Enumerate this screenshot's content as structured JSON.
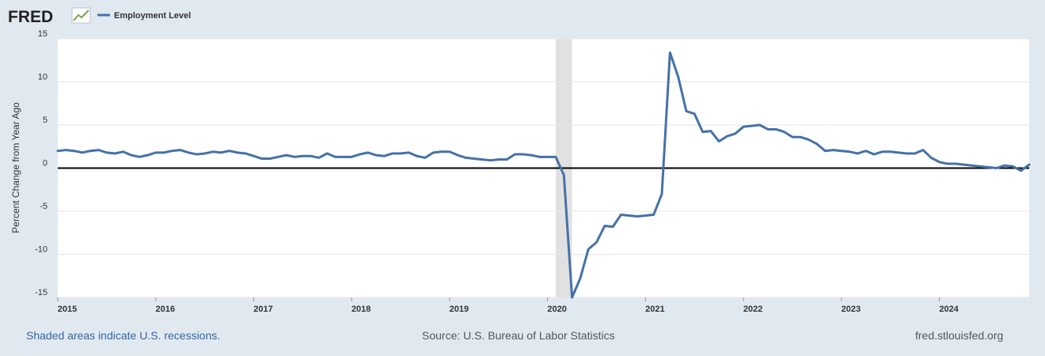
{
  "logo": {
    "text": "FRED"
  },
  "footer": {
    "note": "Shaded areas indicate U.S. recessions.",
    "source": "Source: U.S. Bureau of Labor Statistics",
    "site": "fred.stlouisfed.org"
  },
  "colors": {
    "series": "#4572a7",
    "recession": "#e1e1e1",
    "background": "#e1e9f0",
    "plot": "#ffffff",
    "zero_line": "#000000"
  },
  "chart_data": {
    "type": "line",
    "title": "",
    "xlabel": "",
    "ylabel": "Percent Change from Year Ago",
    "ylim": [
      -15,
      15
    ],
    "xlim": [
      "2015-01",
      "2024-12"
    ],
    "yticks": [
      15,
      10,
      5,
      0,
      -5,
      -10,
      -15
    ],
    "ytick_labels": [
      "15",
      "10",
      "5",
      "0",
      "-5",
      "-10",
      "-15"
    ],
    "xticks": [
      "2015-01",
      "2016-01",
      "2017-01",
      "2018-01",
      "2019-01",
      "2020-01",
      "2021-01",
      "2022-01",
      "2023-01",
      "2024-01"
    ],
    "xtick_labels": [
      "2015",
      "2016",
      "2017",
      "2018",
      "2019",
      "2020",
      "2021",
      "2022",
      "2023",
      "2024"
    ],
    "grid": "horizontal",
    "legend": "top-left",
    "recessions": [
      {
        "start": "2020-02",
        "end": "2020-04"
      }
    ],
    "zero_line": 0,
    "series": [
      {
        "name": "Employment Level",
        "start": "2015-01",
        "frequency": "monthly",
        "values": [
          2.0,
          2.1,
          2.0,
          1.8,
          2.0,
          2.1,
          1.8,
          1.7,
          1.9,
          1.5,
          1.3,
          1.5,
          1.8,
          1.8,
          2.0,
          2.1,
          1.8,
          1.6,
          1.7,
          1.9,
          1.8,
          2.0,
          1.8,
          1.7,
          1.4,
          1.1,
          1.1,
          1.3,
          1.5,
          1.3,
          1.4,
          1.4,
          1.2,
          1.7,
          1.3,
          1.3,
          1.3,
          1.6,
          1.8,
          1.5,
          1.4,
          1.7,
          1.7,
          1.8,
          1.4,
          1.2,
          1.8,
          1.9,
          1.9,
          1.5,
          1.2,
          1.1,
          1.0,
          0.9,
          1.0,
          1.0,
          1.6,
          1.6,
          1.5,
          1.3,
          1.3,
          1.3,
          -0.8,
          -15.0,
          -12.8,
          -9.4,
          -8.6,
          -6.7,
          -6.8,
          -5.4,
          -5.5,
          -5.6,
          -5.5,
          -5.4,
          -3.0,
          13.4,
          10.6,
          6.6,
          6.3,
          4.2,
          4.3,
          3.1,
          3.7,
          4.0,
          4.8,
          4.9,
          5.0,
          4.5,
          4.5,
          4.2,
          3.6,
          3.6,
          3.3,
          2.8,
          2.0,
          2.1,
          2.0,
          1.9,
          1.7,
          2.0,
          1.6,
          1.9,
          1.9,
          1.8,
          1.7,
          1.7,
          2.1,
          1.2,
          0.7,
          0.5,
          0.5,
          0.4,
          0.3,
          0.2,
          0.1,
          0.0,
          0.3,
          0.2,
          -0.3,
          0.4
        ]
      }
    ]
  }
}
